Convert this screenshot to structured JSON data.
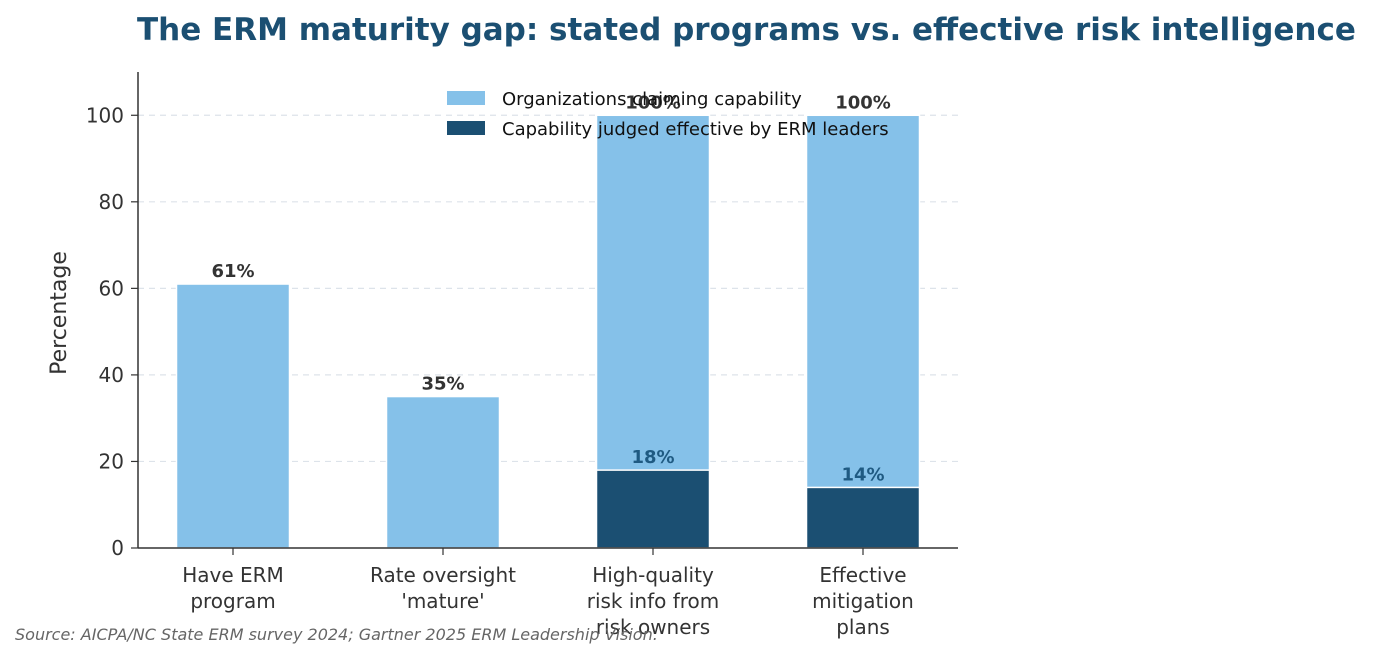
{
  "chart_data": {
    "type": "bar",
    "title": "The ERM maturity gap: stated programs vs. effective risk intelligence",
    "ylabel": "Percentage",
    "xlabel": "",
    "ylim": [
      0,
      110
    ],
    "yticks": [
      0,
      20,
      40,
      60,
      80,
      100
    ],
    "grid": "y-dashed",
    "legend_position": "top-center",
    "categories": [
      [
        "Have ERM",
        "program"
      ],
      [
        "Rate oversight",
        "'mature'"
      ],
      [
        "High-quality",
        "risk info from",
        "risk owners"
      ],
      [
        "Effective",
        "mitigation",
        "plans"
      ]
    ],
    "series": [
      {
        "name": "Organizations claiming capability",
        "color": "#85c1e9",
        "values": [
          61,
          35,
          100,
          100
        ],
        "labels": [
          "61%",
          "35%",
          "100%",
          "100%"
        ]
      },
      {
        "name": "Capability judged effective by ERM leaders",
        "color": "#1b4f72",
        "values": [
          null,
          null,
          18,
          14
        ],
        "labels": [
          "",
          "",
          "18%",
          "14%"
        ]
      }
    ],
    "source": "Source: AICPA/NC State ERM survey 2024; Gartner 2025 ERM Leadership Vision."
  }
}
